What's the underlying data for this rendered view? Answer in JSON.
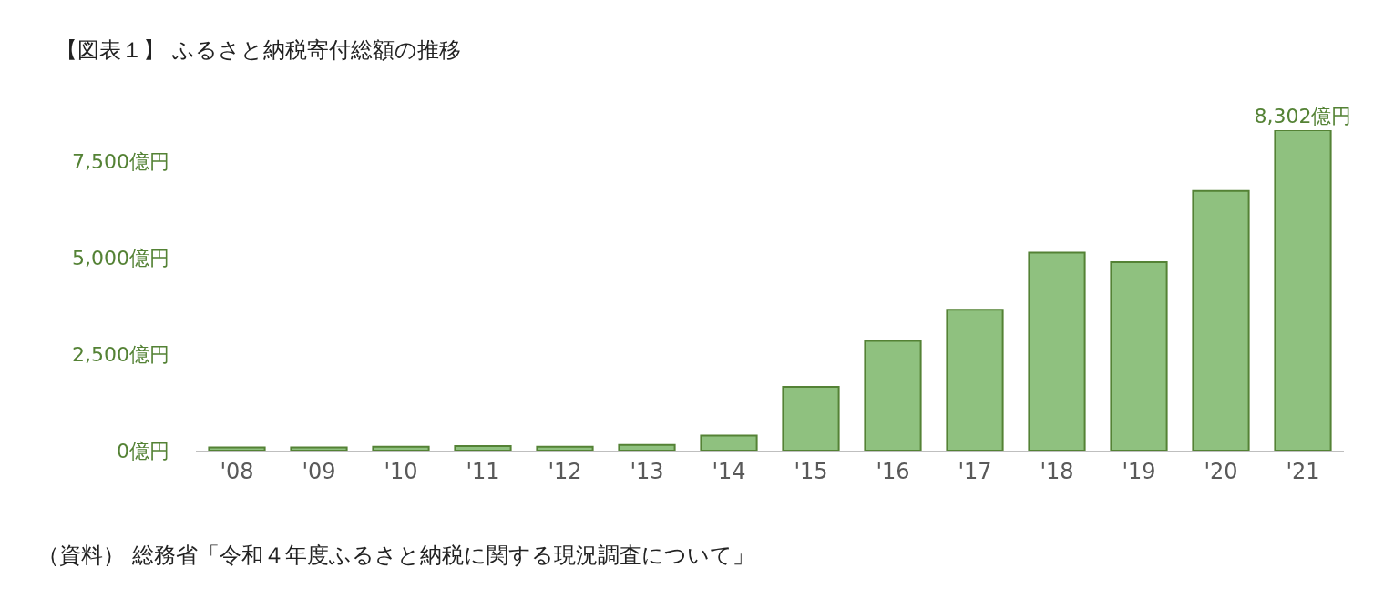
{
  "chart_data": {
    "type": "bar",
    "title": "【図表１】 ふるさと納税寄付総額の推移",
    "categories": [
      "'08",
      "'09",
      "'10",
      "'11",
      "'12",
      "'13",
      "'14",
      "'15",
      "'16",
      "'17",
      "'18",
      "'19",
      "'20",
      "'21"
    ],
    "values": [
      80,
      80,
      100,
      120,
      100,
      150,
      390,
      1650,
      2840,
      3650,
      5130,
      4880,
      6730,
      8302
    ],
    "color": "#8fc17f",
    "value_labels": [
      null,
      null,
      null,
      null,
      null,
      null,
      null,
      null,
      null,
      null,
      null,
      null,
      null,
      "8,302億円"
    ],
    "ylim": [
      0,
      8302
    ],
    "yticks": [
      {
        "value": 0,
        "label": "0億円"
      },
      {
        "value": 2500,
        "label": "2,500億円"
      },
      {
        "value": 5000,
        "label": "5,000億円"
      },
      {
        "value": 7500,
        "label": "7,500億円"
      }
    ],
    "annotations": [
      "（資料） 総務省「令和４年度ふるさと納税に関する現況調査について」"
    ]
  }
}
